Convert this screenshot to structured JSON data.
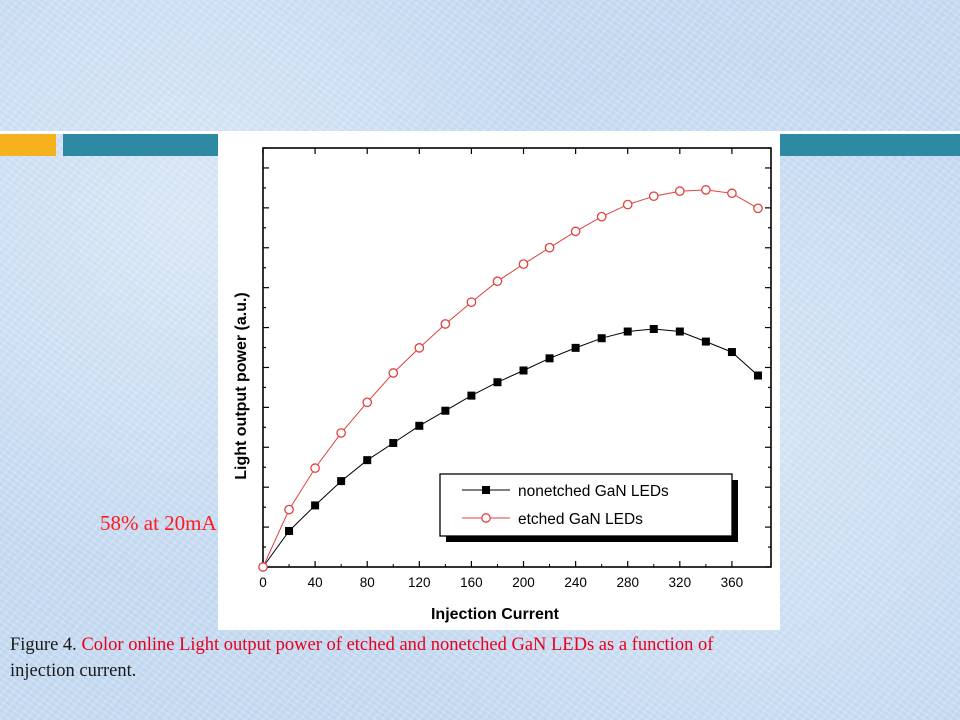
{
  "colors": {
    "accent_orange": "#f5b21c",
    "accent_teal": "#2e8aa3",
    "series_nonetched": "#000000",
    "series_etched": "#e0403f",
    "annotation": "#ff1a1a",
    "caption_red": "#e8001c"
  },
  "annotation_text": "58% at 20mA",
  "caption": {
    "prefix": "Figure 4. ",
    "body": "Color online Light output power of etched and nonetched GaN LEDs as a function of",
    "continuation": "injection current."
  },
  "chart_data": {
    "type": "line",
    "xlabel": "Injection Current",
    "ylabel": "Light output power (a.u.)",
    "xlim": [
      0,
      390
    ],
    "ylim": [
      0,
      1.0
    ],
    "xticks": [
      0,
      40,
      80,
      120,
      160,
      200,
      240,
      280,
      320,
      360
    ],
    "y_tick_count": 21,
    "legend_position": "lower-right",
    "series": [
      {
        "name": "nonetched GaN LEDs",
        "marker": "filled-square",
        "x": [
          20,
          40,
          60,
          80,
          100,
          120,
          140,
          160,
          180,
          200,
          220,
          240,
          260,
          280,
          300,
          320,
          340,
          360,
          380
        ],
        "y": [
          0.086,
          0.147,
          0.205,
          0.255,
          0.296,
          0.337,
          0.373,
          0.409,
          0.441,
          0.469,
          0.498,
          0.523,
          0.546,
          0.562,
          0.568,
          0.562,
          0.538,
          0.513,
          0.457
        ]
      },
      {
        "name": "etched GaN LEDs",
        "marker": "open-circle",
        "x": [
          0,
          20,
          40,
          60,
          80,
          100,
          120,
          140,
          160,
          180,
          200,
          220,
          240,
          260,
          280,
          300,
          320,
          340,
          360,
          380
        ],
        "y": [
          0,
          0.137,
          0.236,
          0.32,
          0.393,
          0.463,
          0.523,
          0.58,
          0.632,
          0.682,
          0.723,
          0.762,
          0.801,
          0.836,
          0.865,
          0.885,
          0.897,
          0.9,
          0.892,
          0.856
        ]
      }
    ]
  }
}
